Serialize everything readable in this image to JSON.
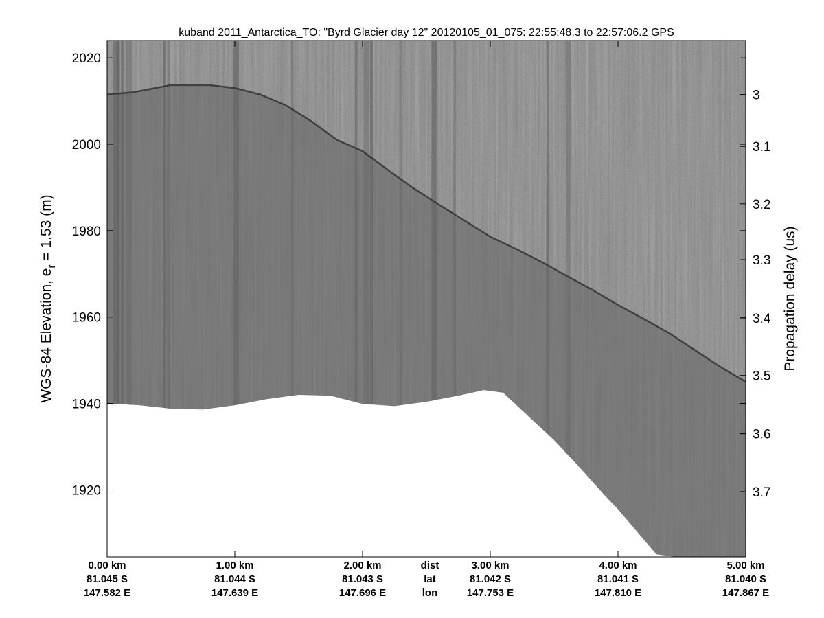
{
  "chart_data": {
    "type": "heatmap",
    "title": "kuband 2011_Antarctica_TO: \"Byrd Glacier day 12\"  20120105_01_075: 22:55:48.3 to 22:57:06.2 GPS",
    "ylabel_left_main": "WGS-84 Elevation, e",
    "ylabel_left_sub": "r",
    "ylabel_left_tail": " = 1.53 (m)",
    "ylabel_right": "Propagation delay (us)",
    "xlim": [
      0,
      5
    ],
    "ylim": [
      1904.5,
      2024
    ],
    "left_ticks": [
      2020,
      2000,
      1980,
      1960,
      1940,
      1920
    ],
    "right_tick_labels": [
      "3",
      "3.1",
      "3.2",
      "3.3",
      "3.4",
      "3.5",
      "3.6",
      "3.7"
    ],
    "right_tick_elevations": [
      2011.5,
      1999.5,
      1986.2,
      1973.3,
      1959.8,
      1946.5,
      1933.0,
      1919.6
    ],
    "bottom_ticks": [
      {
        "x": 0,
        "dist": "0.00 km",
        "lat": "81.045 S",
        "lon": "147.582 E"
      },
      {
        "x": 1,
        "dist": "1.00 km",
        "lat": "81.044 S",
        "lon": "147.639 E"
      },
      {
        "x": 2,
        "dist": "2.00 km",
        "lat": "81.043 S",
        "lon": "147.696 E"
      },
      {
        "x": 3,
        "dist": "3.00 km",
        "lat": "81.042 S",
        "lon": "147.753 E"
      },
      {
        "x": 4,
        "dist": "4.00 km",
        "lat": "81.041 S",
        "lon": "147.810 E"
      },
      {
        "x": 5,
        "dist": "5.00 km",
        "lat": "81.040 S",
        "lon": "147.867 E"
      }
    ],
    "row_labels": {
      "x": 2.5,
      "dist": "dist",
      "lat": "lat",
      "lon": "lon"
    },
    "surface_elevation": {
      "x": [
        0,
        0.2,
        0.5,
        0.8,
        1.0,
        1.2,
        1.4,
        1.6,
        1.8,
        2.0,
        2.2,
        2.4,
        2.6,
        2.8,
        3.0,
        3.2,
        3.4,
        3.6,
        3.8,
        4.0,
        4.2,
        4.4,
        4.6,
        4.8,
        5.0
      ],
      "y": [
        2011.5,
        2012.0,
        2013.7,
        2013.7,
        2013.0,
        2011.5,
        2009.0,
        2005.3,
        2001.0,
        1998.4,
        1994.0,
        1989.8,
        1986.0,
        1982.3,
        1978.6,
        1975.8,
        1972.8,
        1969.5,
        1966.3,
        1962.8,
        1959.6,
        1956.3,
        1952.4,
        1948.5,
        1945.0
      ]
    },
    "data_floor_elevation": {
      "x": [
        0,
        0.25,
        0.5,
        0.75,
        1.0,
        1.25,
        1.5,
        1.75,
        2.0,
        2.25,
        2.5,
        2.75,
        2.95,
        3.1,
        3.3,
        3.5,
        3.7,
        3.9,
        4.0,
        4.15,
        4.3,
        4.45,
        4.6,
        5.0
      ],
      "y": [
        1940.0,
        1939.6,
        1938.8,
        1938.6,
        1939.6,
        1941.0,
        1942.0,
        1941.8,
        1939.9,
        1939.4,
        1940.4,
        1941.8,
        1943.1,
        1942.5,
        1937.0,
        1931.5,
        1925.2,
        1918.6,
        1915.5,
        1910.3,
        1905.1,
        1904.5,
        1904.5,
        1904.5
      ]
    },
    "grid": false,
    "colors": {
      "image_base": "#7a7a7a",
      "ice": "#646464",
      "blank": "#ffffff",
      "axis": "#000000"
    }
  }
}
